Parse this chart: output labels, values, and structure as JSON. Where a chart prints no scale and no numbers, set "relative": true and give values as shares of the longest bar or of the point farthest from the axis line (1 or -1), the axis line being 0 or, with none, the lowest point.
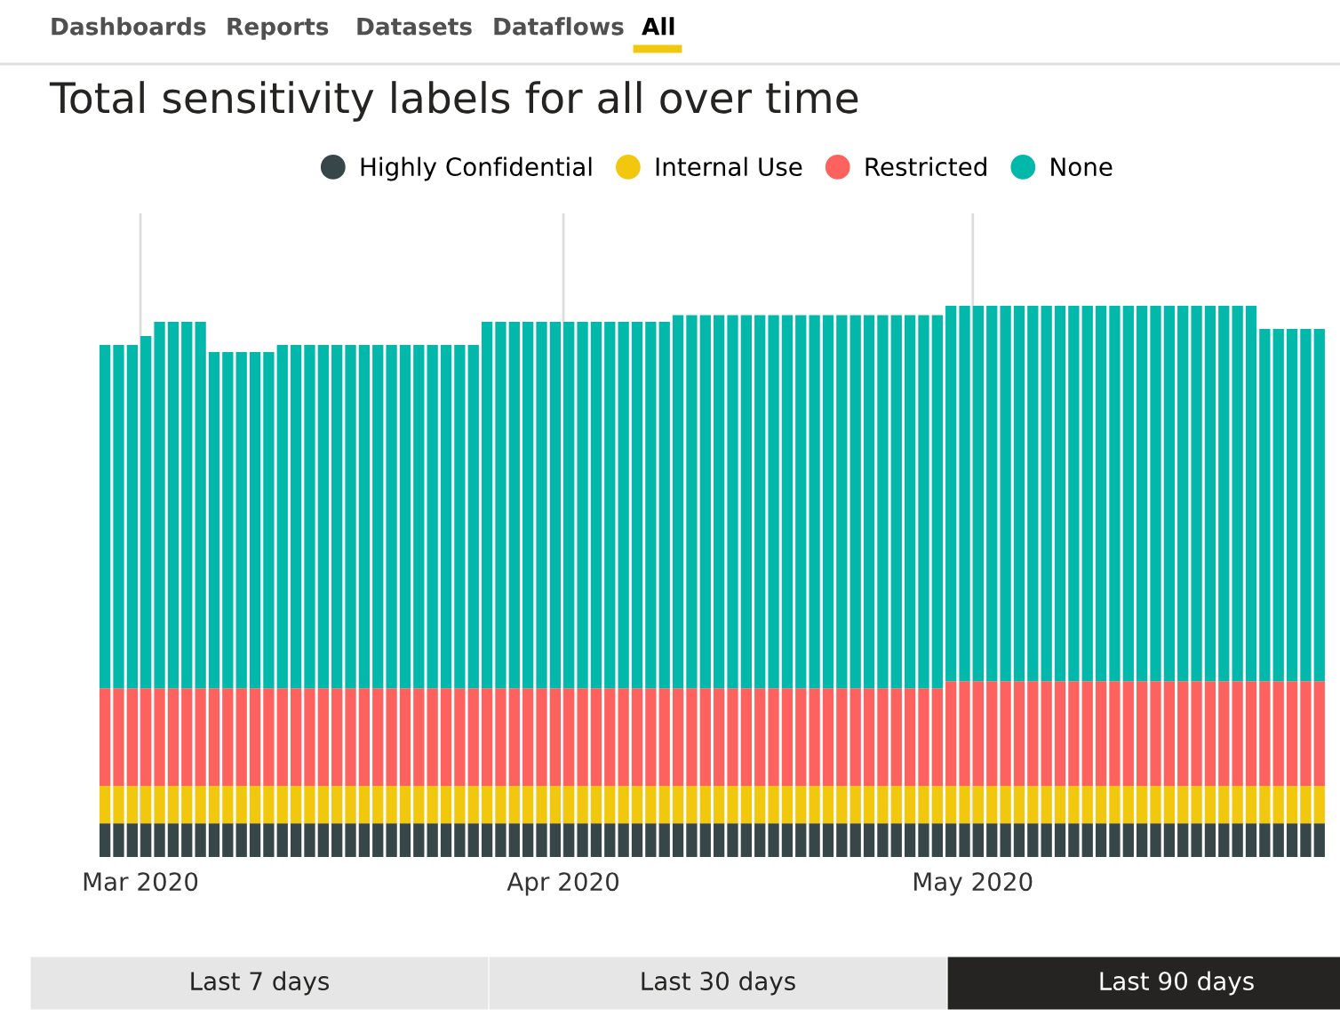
{
  "chart_data": {
    "type": "bar",
    "stacked": true,
    "relative": true,
    "title": "Total sensitivity labels for all over time",
    "x": [
      "2020-02-27",
      "2020-02-28",
      "2020-02-29",
      "2020-03-01",
      "2020-03-02",
      "2020-03-03",
      "2020-03-04",
      "2020-03-05",
      "2020-03-06",
      "2020-03-07",
      "2020-03-08",
      "2020-03-09",
      "2020-03-10",
      "2020-03-11",
      "2020-03-12",
      "2020-03-13",
      "2020-03-14",
      "2020-03-15",
      "2020-03-16",
      "2020-03-17",
      "2020-03-18",
      "2020-03-19",
      "2020-03-20",
      "2020-03-21",
      "2020-03-22",
      "2020-03-23",
      "2020-03-24",
      "2020-03-25",
      "2020-03-26",
      "2020-03-27",
      "2020-03-28",
      "2020-03-29",
      "2020-03-30",
      "2020-03-31",
      "2020-04-01",
      "2020-04-02",
      "2020-04-03",
      "2020-04-04",
      "2020-04-05",
      "2020-04-06",
      "2020-04-07",
      "2020-04-08",
      "2020-04-09",
      "2020-04-10",
      "2020-04-11",
      "2020-04-12",
      "2020-04-13",
      "2020-04-14",
      "2020-04-15",
      "2020-04-16",
      "2020-04-17",
      "2020-04-18",
      "2020-04-19",
      "2020-04-20",
      "2020-04-21",
      "2020-04-22",
      "2020-04-23",
      "2020-04-24",
      "2020-04-25",
      "2020-04-26",
      "2020-04-27",
      "2020-04-28",
      "2020-04-29",
      "2020-04-30",
      "2020-05-01",
      "2020-05-02",
      "2020-05-03",
      "2020-05-04",
      "2020-05-05",
      "2020-05-06",
      "2020-05-07",
      "2020-05-08",
      "2020-05-09",
      "2020-05-10",
      "2020-05-11",
      "2020-05-12",
      "2020-05-13",
      "2020-05-14",
      "2020-05-15",
      "2020-05-16",
      "2020-05-17",
      "2020-05-18",
      "2020-05-19",
      "2020-05-20",
      "2020-05-21",
      "2020-05-22",
      "2020-05-23",
      "2020-05-24",
      "2020-05-25",
      "2020-05-26"
    ],
    "xlim": [
      "2020-02-27",
      "2020-05-27"
    ],
    "xticks": [
      {
        "value": "2020-03-01",
        "label": "Mar 2020"
      },
      {
        "value": "2020-04-01",
        "label": "Apr 2020"
      },
      {
        "value": "2020-05-01",
        "label": "May 2020"
      }
    ],
    "grid": "x",
    "legend": "top",
    "marker": "circle",
    "series": [
      {
        "name": "Highly Confidential",
        "color": "#374649",
        "values": [
          0.061,
          0.061,
          0.061,
          0.061,
          0.061,
          0.061,
          0.061,
          0.061,
          0.061,
          0.061,
          0.061,
          0.061,
          0.061,
          0.061,
          0.061,
          0.061,
          0.061,
          0.061,
          0.061,
          0.061,
          0.061,
          0.061,
          0.061,
          0.061,
          0.061,
          0.061,
          0.061,
          0.061,
          0.061,
          0.061,
          0.061,
          0.061,
          0.061,
          0.061,
          0.061,
          0.061,
          0.061,
          0.061,
          0.061,
          0.061,
          0.061,
          0.061,
          0.061,
          0.061,
          0.061,
          0.061,
          0.061,
          0.061,
          0.061,
          0.061,
          0.061,
          0.061,
          0.061,
          0.061,
          0.061,
          0.061,
          0.061,
          0.061,
          0.061,
          0.061,
          0.061,
          0.061,
          0.061,
          0.061,
          0.061,
          0.061,
          0.061,
          0.061,
          0.061,
          0.061,
          0.061,
          0.061,
          0.061,
          0.061,
          0.061,
          0.061,
          0.061,
          0.061,
          0.061,
          0.061,
          0.061,
          0.061,
          0.061,
          0.061,
          0.061,
          0.061,
          0.061,
          0.061,
          0.061,
          0.061
        ]
      },
      {
        "name": "Internal Use",
        "color": "#f2c80f",
        "values": [
          0.068,
          0.068,
          0.068,
          0.068,
          0.068,
          0.068,
          0.068,
          0.068,
          0.068,
          0.068,
          0.068,
          0.068,
          0.068,
          0.068,
          0.068,
          0.068,
          0.068,
          0.068,
          0.068,
          0.068,
          0.068,
          0.068,
          0.068,
          0.068,
          0.068,
          0.068,
          0.068,
          0.068,
          0.068,
          0.068,
          0.068,
          0.068,
          0.068,
          0.068,
          0.068,
          0.068,
          0.068,
          0.068,
          0.068,
          0.068,
          0.068,
          0.068,
          0.068,
          0.068,
          0.068,
          0.068,
          0.068,
          0.068,
          0.068,
          0.068,
          0.068,
          0.068,
          0.068,
          0.068,
          0.068,
          0.068,
          0.068,
          0.068,
          0.068,
          0.068,
          0.068,
          0.068,
          0.068,
          0.068,
          0.068,
          0.068,
          0.068,
          0.068,
          0.068,
          0.068,
          0.068,
          0.068,
          0.068,
          0.068,
          0.068,
          0.068,
          0.068,
          0.068,
          0.068,
          0.068,
          0.068,
          0.068,
          0.068,
          0.068,
          0.068,
          0.068,
          0.068,
          0.068,
          0.068,
          0.068
        ]
      },
      {
        "name": "Restricted",
        "color": "#fd625e",
        "values": [
          0.177,
          0.177,
          0.177,
          0.177,
          0.177,
          0.177,
          0.177,
          0.177,
          0.177,
          0.177,
          0.177,
          0.177,
          0.177,
          0.177,
          0.177,
          0.177,
          0.177,
          0.177,
          0.177,
          0.177,
          0.177,
          0.177,
          0.177,
          0.177,
          0.177,
          0.177,
          0.177,
          0.177,
          0.177,
          0.177,
          0.177,
          0.177,
          0.177,
          0.177,
          0.177,
          0.177,
          0.177,
          0.177,
          0.177,
          0.177,
          0.177,
          0.177,
          0.177,
          0.177,
          0.177,
          0.177,
          0.177,
          0.177,
          0.177,
          0.177,
          0.177,
          0.177,
          0.177,
          0.177,
          0.177,
          0.177,
          0.177,
          0.177,
          0.177,
          0.177,
          0.177,
          0.177,
          0.19,
          0.19,
          0.19,
          0.19,
          0.19,
          0.19,
          0.19,
          0.19,
          0.19,
          0.19,
          0.19,
          0.19,
          0.19,
          0.19,
          0.19,
          0.19,
          0.19,
          0.19,
          0.19,
          0.19,
          0.19,
          0.19,
          0.19,
          0.19,
          0.19,
          0.19,
          0.19,
          0.19
        ]
      },
      {
        "name": "None",
        "color": "#01b8aa",
        "values": [
          0.623,
          0.623,
          0.623,
          0.639,
          0.665,
          0.665,
          0.665,
          0.665,
          0.61,
          0.61,
          0.61,
          0.61,
          0.61,
          0.623,
          0.623,
          0.623,
          0.623,
          0.623,
          0.623,
          0.623,
          0.623,
          0.623,
          0.623,
          0.623,
          0.623,
          0.623,
          0.623,
          0.623,
          0.665,
          0.665,
          0.665,
          0.665,
          0.665,
          0.665,
          0.665,
          0.665,
          0.665,
          0.665,
          0.665,
          0.665,
          0.665,
          0.665,
          0.677,
          0.677,
          0.677,
          0.677,
          0.677,
          0.677,
          0.677,
          0.677,
          0.677,
          0.677,
          0.677,
          0.677,
          0.677,
          0.677,
          0.677,
          0.677,
          0.677,
          0.677,
          0.677,
          0.677,
          0.681,
          0.681,
          0.681,
          0.681,
          0.681,
          0.681,
          0.681,
          0.681,
          0.681,
          0.681,
          0.681,
          0.681,
          0.681,
          0.681,
          0.681,
          0.681,
          0.681,
          0.681,
          0.681,
          0.681,
          0.681,
          0.681,
          0.681,
          0.639,
          0.639,
          0.639,
          0.639,
          0.639
        ]
      }
    ],
    "annotations": [
      "Dashboards",
      "Reports",
      "Datasets",
      "Dataflows",
      "All",
      "Last 7 days",
      "Last 30 days",
      "Last 90 days"
    ]
  }
}
